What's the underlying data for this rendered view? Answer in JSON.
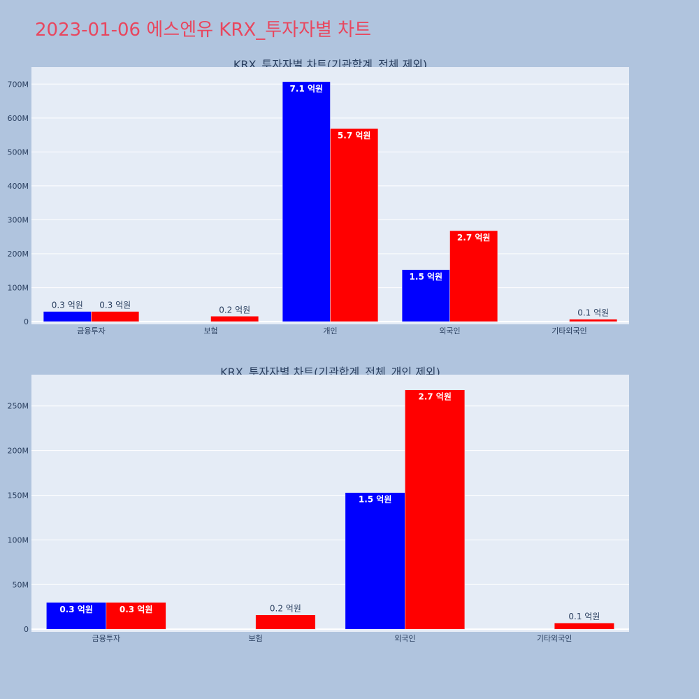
{
  "page_title": "2023-01-06 에스엔유 KRX_투자자별 차트",
  "chart_data": [
    {
      "type": "bar",
      "title": "KRX_투자자별 차트(기관합계_전체 제외)",
      "categories": [
        "금융투자",
        "보험",
        "개인",
        "외국인",
        "기타외국인"
      ],
      "series": [
        {
          "color": "#0000ff",
          "values": [
            30000000,
            0,
            707000000,
            153000000,
            0
          ],
          "labels": [
            "0.3 억원",
            "",
            "7.1 억원",
            "1.5 억원",
            ""
          ]
        },
        {
          "color": "#ff0000",
          "values": [
            30000000,
            16000000,
            569000000,
            268000000,
            7000000
          ],
          "labels": [
            "0.3 억원",
            "0.2 억원",
            "5.7 억원",
            "2.7 억원",
            "0.1 억원"
          ]
        }
      ],
      "ylim": [
        -8000000,
        750000000
      ],
      "yticks": [
        0,
        100000000,
        200000000,
        300000000,
        400000000,
        500000000,
        600000000,
        700000000
      ],
      "ytick_labels": [
        "0",
        "100M",
        "200M",
        "300M",
        "400M",
        "500M",
        "600M",
        "700M"
      ]
    },
    {
      "type": "bar",
      "title": "KRX_투자자별 차트(기관합계_전체_개인 제외)",
      "categories": [
        "금융투자",
        "보험",
        "외국인",
        "기타외국인"
      ],
      "series": [
        {
          "color": "#0000ff",
          "values": [
            30000000,
            0,
            153000000,
            0
          ],
          "labels": [
            "0.3 억원",
            "",
            "1.5 억원",
            ""
          ]
        },
        {
          "color": "#ff0000",
          "values": [
            30000000,
            16000000,
            268000000,
            7000000
          ],
          "labels": [
            "0.3 억원",
            "0.2 억원",
            "2.7 억원",
            "0.1 억원"
          ]
        }
      ],
      "ylim": [
        -3000000,
        285000000
      ],
      "yticks": [
        0,
        50000000,
        100000000,
        150000000,
        200000000,
        250000000
      ],
      "ytick_labels": [
        "0",
        "50M",
        "100M",
        "150M",
        "200M",
        "250M"
      ]
    }
  ]
}
